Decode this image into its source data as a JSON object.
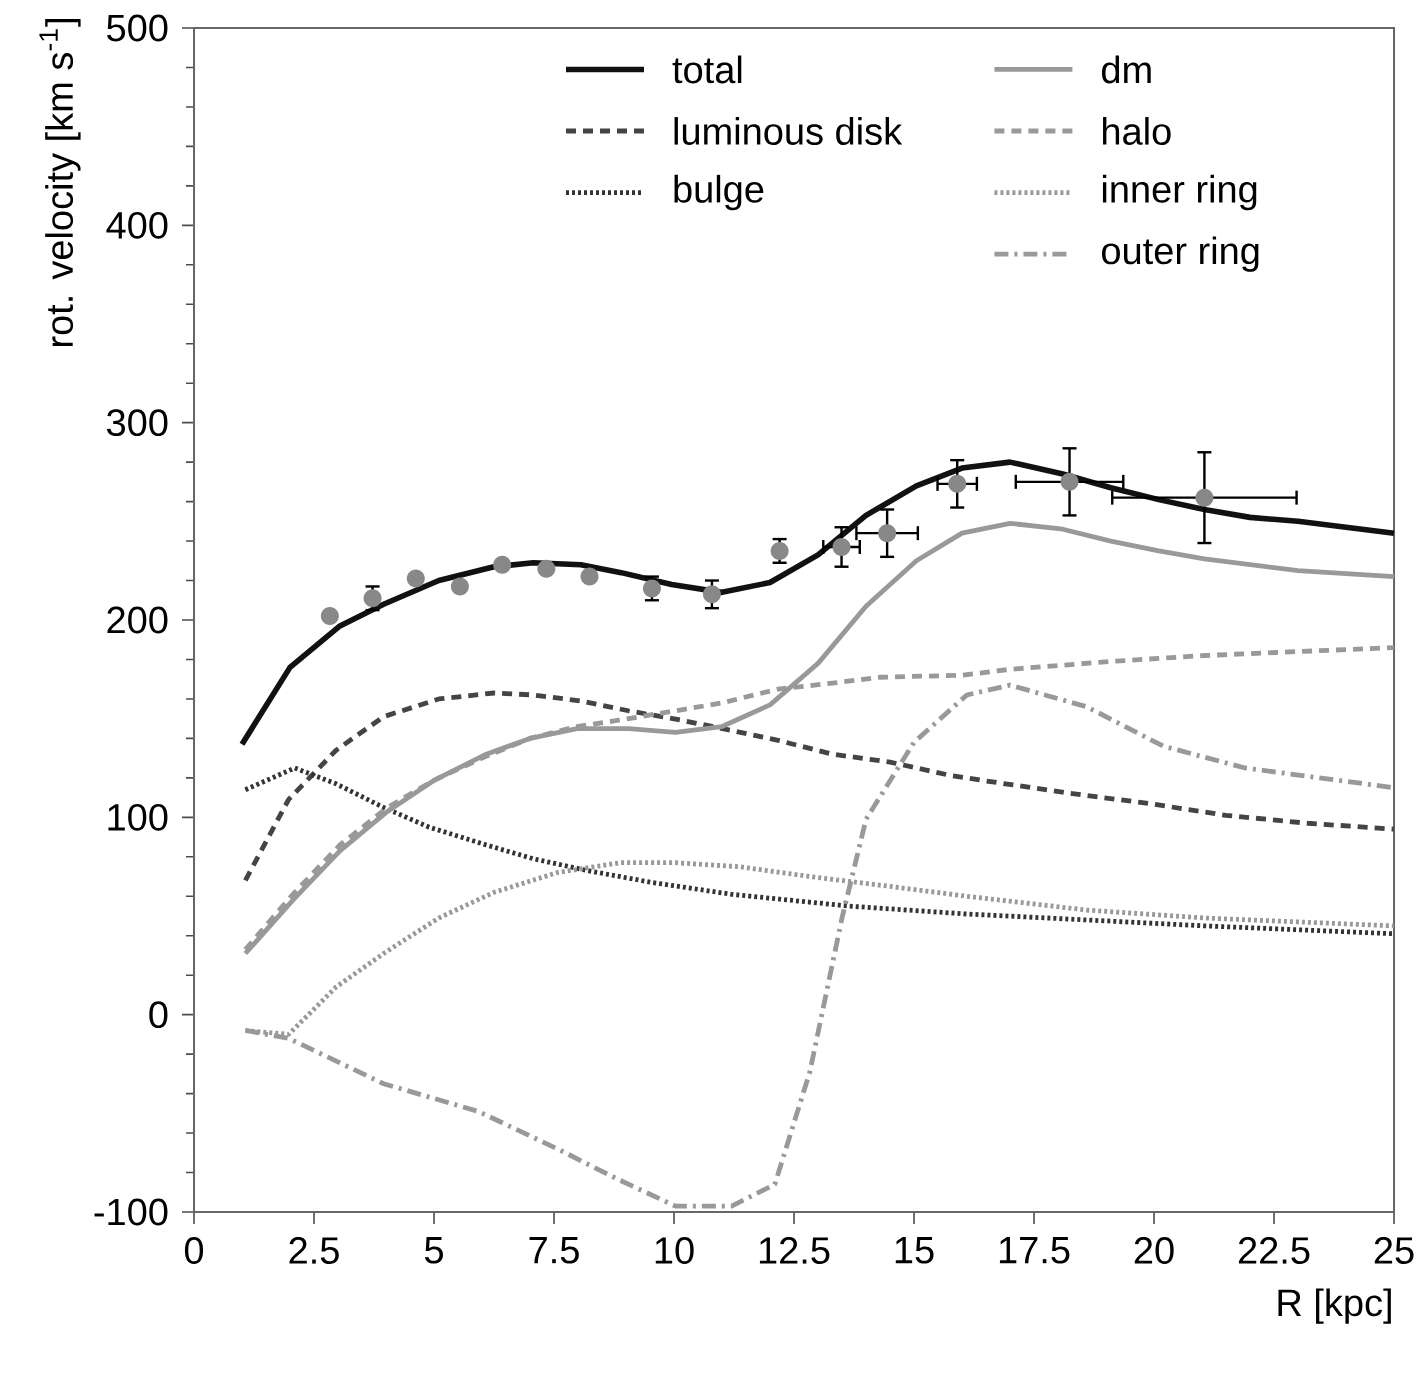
{
  "chart_data": {
    "type": "line",
    "xlabel": "R [kpc]",
    "ylabel": "rot. velocity [km s$^{-1}$]",
    "xlim": [
      0,
      25
    ],
    "ylim": [
      -100,
      500
    ],
    "xticks": [
      0,
      2.5,
      5,
      7.5,
      10,
      12.5,
      15,
      17.5,
      20,
      22.5,
      25
    ],
    "yticks": [
      -100,
      0,
      100,
      200,
      300,
      400,
      500
    ],
    "grid": false,
    "legend": "top",
    "series": [
      {
        "name": "total",
        "color": "#111111",
        "line_style": "solid",
        "x": [
          1,
          2.0,
          3.04,
          3.95,
          5.1,
          6.25,
          7.07,
          8.06,
          8.9,
          9.95,
          11.0,
          12.0,
          13.0,
          14.0,
          15.05,
          16.0,
          17.0,
          18.1,
          19.1,
          20.1,
          21.05,
          22.0,
          23.0,
          25
        ],
        "values": [
          137,
          176,
          197,
          208,
          220,
          227,
          229,
          228,
          224,
          218,
          214,
          219,
          233,
          253,
          268,
          277,
          280,
          274,
          267,
          261,
          256,
          252,
          250,
          244
        ]
      },
      {
        "name": "luminous disk",
        "color": "#444444",
        "line_style": "dashed",
        "x": [
          1.07,
          1.97,
          2.96,
          3.95,
          5.1,
          6.25,
          7.07,
          8.06,
          9.05,
          10.2,
          11.2,
          12.17,
          13.3,
          14.5,
          15.8,
          16.9,
          18.3,
          19.9,
          21.5,
          23.2,
          25
        ],
        "values": [
          68,
          109,
          134,
          151,
          160,
          163,
          162,
          159,
          154,
          149,
          144,
          139,
          132,
          128,
          121,
          117,
          112,
          107,
          101,
          97,
          94
        ]
      },
      {
        "name": "bulge",
        "color": "#333333",
        "line_style": "dotted",
        "x": [
          1.07,
          2.1,
          2.96,
          3.95,
          4.9,
          6.09,
          7.07,
          8.2,
          9.54,
          11.2,
          13.65,
          16.1,
          18.6,
          21.05,
          25
        ],
        "values": [
          114,
          125,
          117,
          105,
          95,
          86,
          79,
          73,
          67,
          61,
          55,
          51,
          48,
          45,
          41
        ]
      },
      {
        "name": "dm",
        "color": "#999999",
        "line_style": "solid",
        "x": [
          1.07,
          2.06,
          3.04,
          4.03,
          5.02,
          6.09,
          7.0,
          7.98,
          9.05,
          10.03,
          11.0,
          12.0,
          13.0,
          14.0,
          15.05,
          16.0,
          17.0,
          18.1,
          19.1,
          20.1,
          21.05,
          23.0,
          25
        ],
        "values": [
          31,
          58,
          83,
          103,
          119,
          132,
          140,
          145,
          145,
          143,
          146,
          157,
          178,
          207,
          230,
          244,
          249,
          246,
          240,
          235,
          231,
          225,
          222
        ]
      },
      {
        "name": "halo",
        "color": "#999999",
        "line_style": "dashed",
        "x": [
          1.07,
          2.06,
          3.04,
          4.03,
          5.02,
          6.09,
          7.0,
          7.98,
          9.05,
          10.03,
          11.0,
          12.17,
          13.3,
          14.3,
          16.0,
          17.0,
          19.1,
          21.05,
          23.0,
          25
        ],
        "values": [
          33,
          61,
          86,
          105,
          119,
          131,
          140,
          146,
          150,
          154,
          158,
          165,
          168,
          171,
          172,
          175,
          179,
          182,
          184,
          186
        ]
      },
      {
        "name": "inner ring",
        "color": "#999999",
        "line_style": "dotted",
        "x": [
          1.07,
          1.97,
          2.96,
          3.95,
          5.1,
          6.25,
          7.57,
          8.88,
          10.03,
          11.35,
          12.83,
          14.5,
          16.1,
          18.6,
          21.05,
          25
        ],
        "values": [
          -8,
          -10,
          14,
          31,
          49,
          62,
          72,
          77,
          77,
          75,
          70,
          65,
          60,
          53,
          49,
          45
        ]
      },
      {
        "name": "outer ring",
        "color": "#999999",
        "line_style": "dashdot",
        "x": [
          1.07,
          1.97,
          3.95,
          5.92,
          7.57,
          8.88,
          10.03,
          11.2,
          12.1,
          12.83,
          13.5,
          14.0,
          15.0,
          16.1,
          17.0,
          18.6,
          20.2,
          21.9,
          25
        ],
        "values": [
          -8,
          -12,
          -35,
          -49,
          -68,
          -84,
          -97,
          -97,
          -86,
          -29,
          49,
          99,
          138,
          162,
          167,
          156,
          136,
          125,
          115
        ]
      },
      {
        "type": "scatter",
        "color": "#888888",
        "marker": "circle",
        "x": [
          2.83,
          3.72,
          4.62,
          5.54,
          6.42,
          7.34,
          8.24,
          9.54,
          10.79,
          12.2,
          13.49,
          14.44,
          15.9,
          18.24,
          21.05
        ],
        "values": [
          202,
          211,
          221,
          217,
          228,
          226,
          222,
          216,
          213,
          235,
          237,
          244,
          269,
          270,
          262
        ],
        "errors": [
          null,
          6,
          null,
          null,
          null,
          null,
          null,
          6,
          7,
          6,
          10,
          12,
          12,
          17,
          23
        ],
        "xerrors": [
          null,
          null,
          null,
          null,
          null,
          null,
          null,
          null,
          null,
          null,
          0.38,
          0.64,
          0.41,
          1.12,
          1.92
        ]
      }
    ]
  }
}
